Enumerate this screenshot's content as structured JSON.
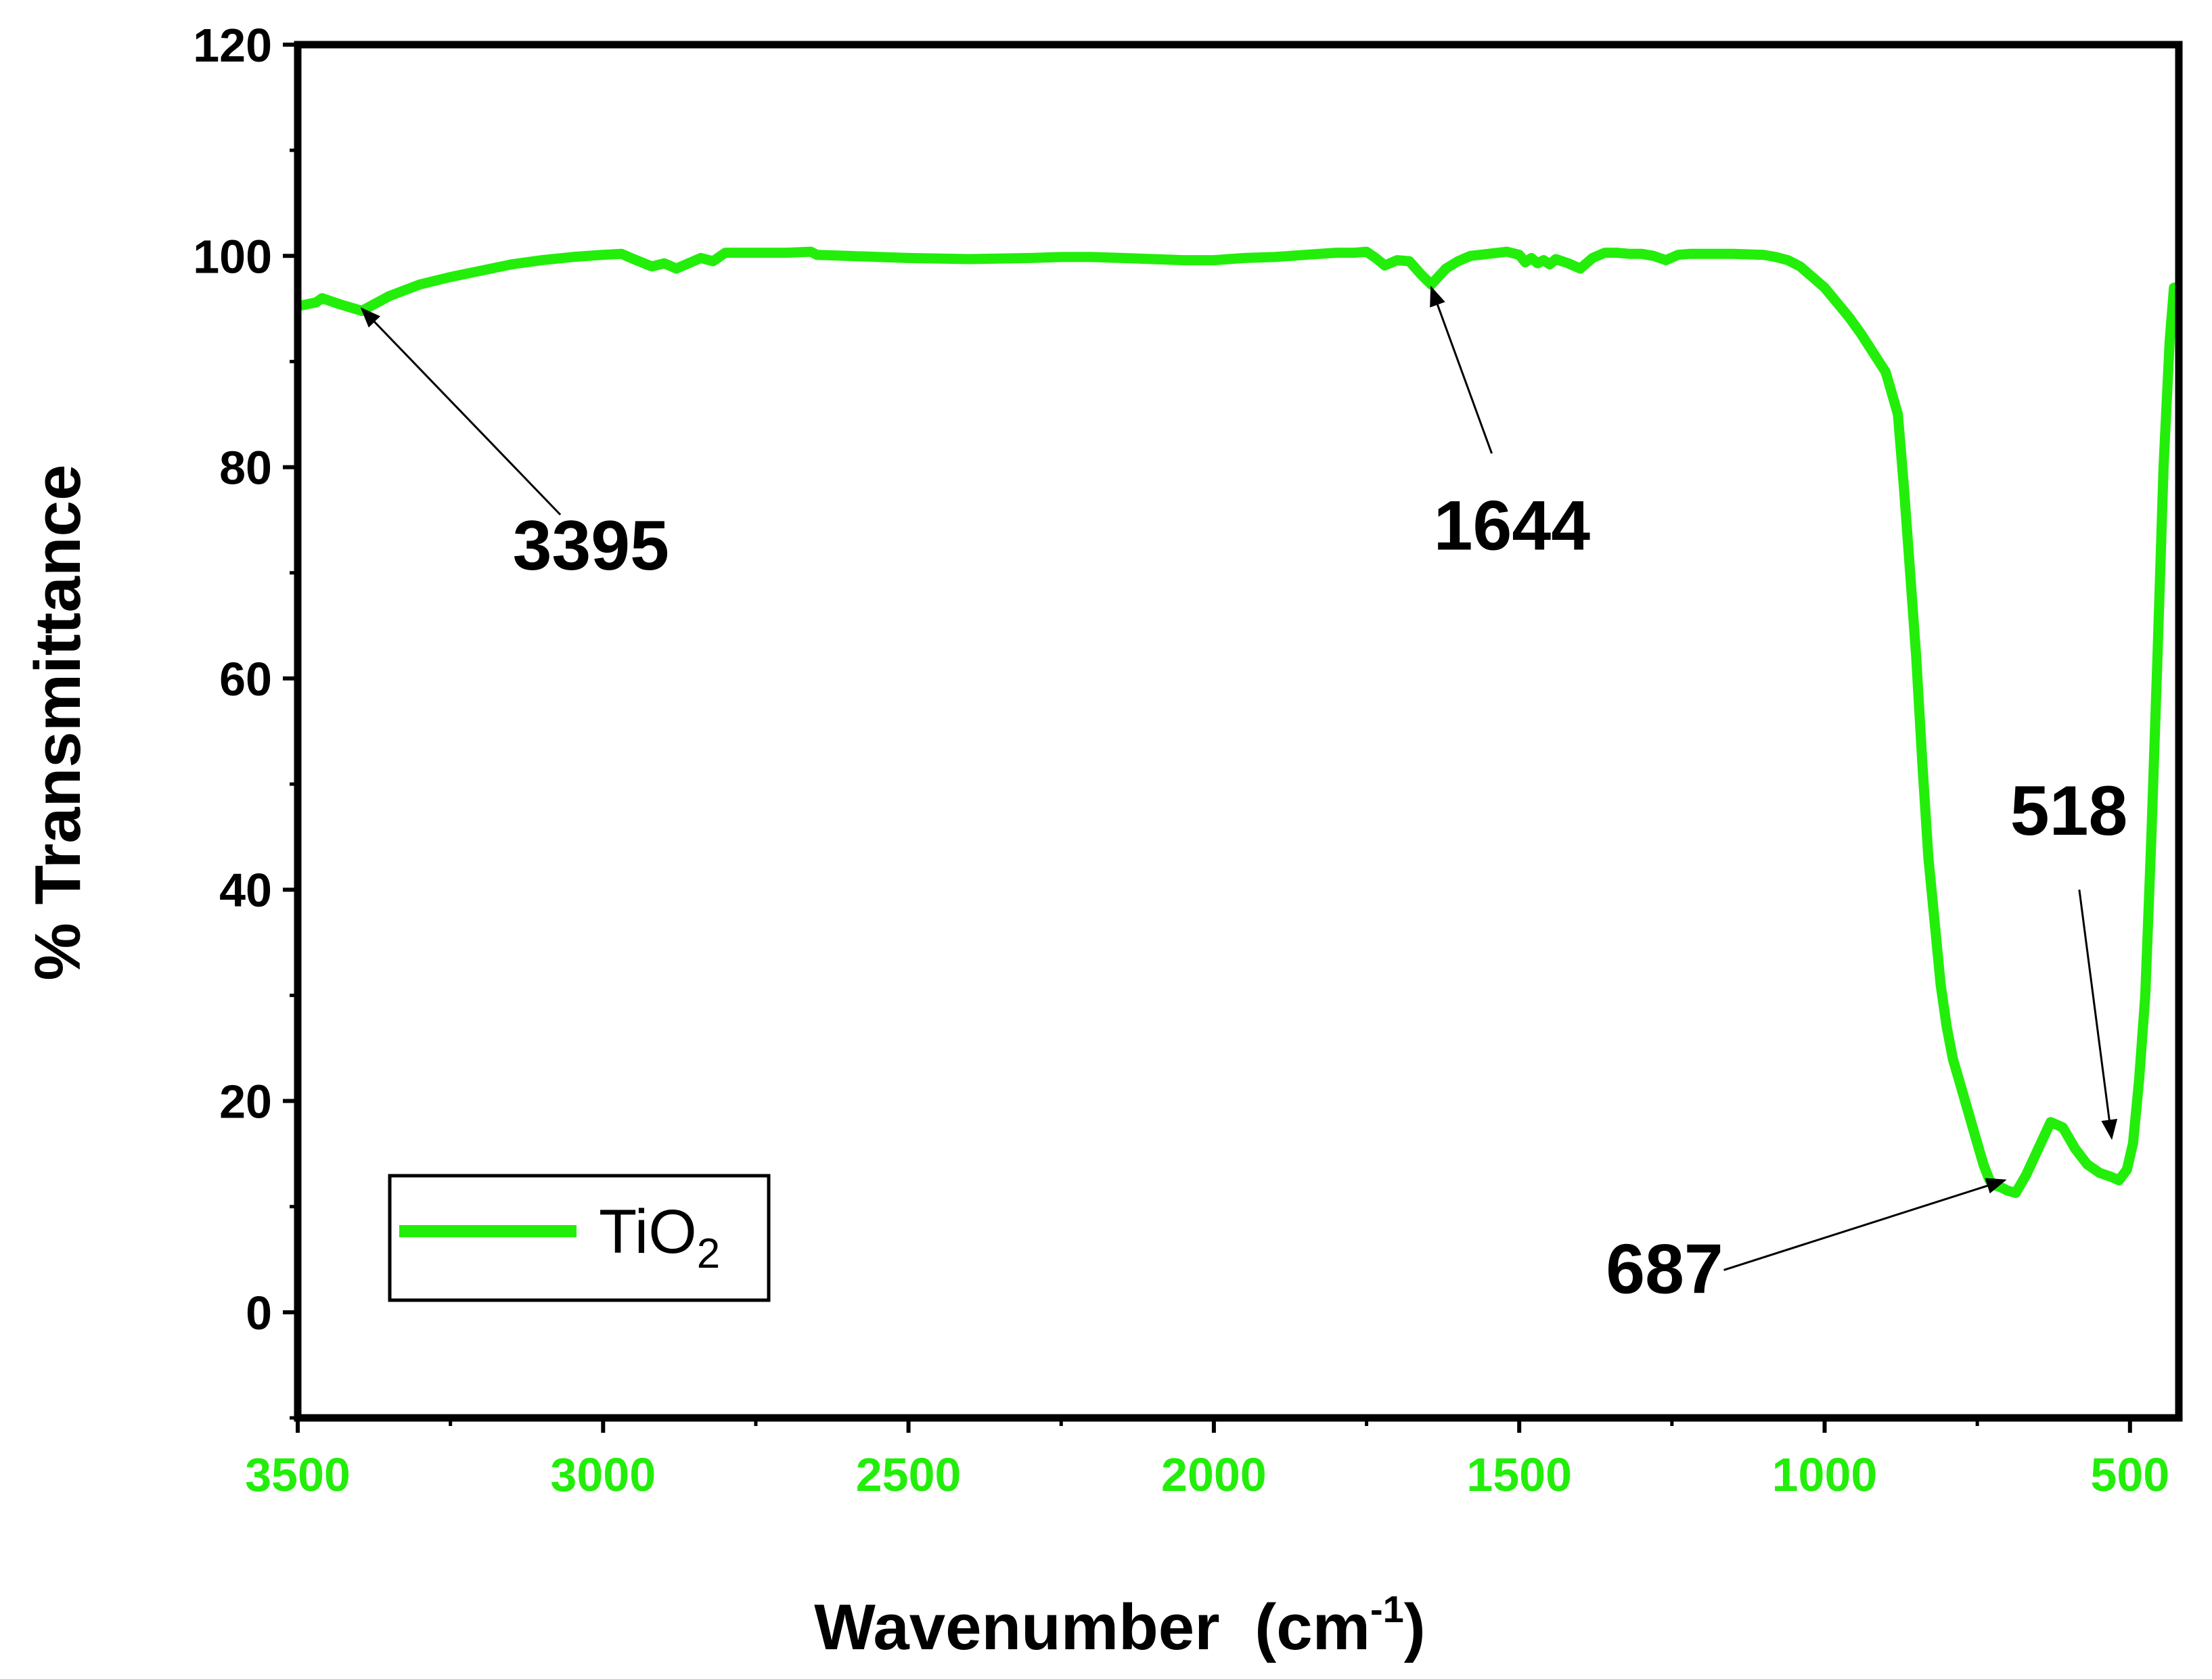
{
  "chart_data": {
    "type": "line",
    "title": "",
    "xlabel": "Wavenumber",
    "xlabel_unit_base": "(cm",
    "xlabel_unit_sup": "-1",
    "xlabel_unit_close": ")",
    "ylabel": "% Transmittance",
    "xlim": [
      3500,
      420
    ],
    "ylim": [
      -10,
      120
    ],
    "x_ticks": [
      3500,
      3000,
      2500,
      2000,
      1500,
      1000,
      500
    ],
    "y_ticks": [
      0,
      20,
      40,
      60,
      80,
      100,
      120
    ],
    "x_tick_labels": [
      "3500",
      "3000",
      "2500",
      "2000",
      "1500",
      "1000",
      "500"
    ],
    "y_tick_labels": [
      "0",
      "20",
      "40",
      "60",
      "80",
      "100",
      "120"
    ],
    "legend": {
      "placement": "bottom-left",
      "entries": [
        {
          "label_base": "TiO",
          "label_sub": "2"
        }
      ]
    },
    "colors": {
      "series": "#22ee0a",
      "axis": "#000000",
      "x_tick_labels": "#22ee0a"
    },
    "series": [
      {
        "name": "TiO2",
        "x": [
          3495,
          3470,
          3460,
          3430,
          3395,
          3350,
          3300,
          3250,
          3200,
          3150,
          3100,
          3050,
          3000,
          2970,
          2950,
          2920,
          2900,
          2880,
          2860,
          2840,
          2820,
          2800,
          2760,
          2700,
          2660,
          2650,
          2600,
          2500,
          2400,
          2300,
          2250,
          2200,
          2150,
          2100,
          2050,
          2000,
          1950,
          1900,
          1850,
          1800,
          1770,
          1750,
          1735,
          1720,
          1700,
          1680,
          1660,
          1644,
          1620,
          1600,
          1580,
          1550,
          1520,
          1500,
          1490,
          1480,
          1470,
          1460,
          1450,
          1440,
          1430,
          1420,
          1400,
          1380,
          1360,
          1340,
          1320,
          1300,
          1280,
          1260,
          1240,
          1220,
          1200,
          1150,
          1100,
          1080,
          1060,
          1040,
          1020,
          1000,
          980,
          960,
          940,
          920,
          900,
          880,
          870,
          860,
          850,
          840,
          830,
          820,
          810,
          800,
          790,
          780,
          770,
          760,
          750,
          740,
          730,
          720,
          710,
          700,
          687,
          670,
          650,
          630,
          610,
          590,
          570,
          550,
          530,
          518,
          505,
          495,
          485,
          475,
          465,
          455,
          445,
          435,
          428
        ],
        "y": [
          95.3,
          95.6,
          96.0,
          95.4,
          94.8,
          96.2,
          97.3,
          98.0,
          98.6,
          99.2,
          99.6,
          99.9,
          100.1,
          100.2,
          99.7,
          99.0,
          99.3,
          98.8,
          99.3,
          99.8,
          99.5,
          100.3,
          100.3,
          100.3,
          100.4,
          100.1,
          100.0,
          99.8,
          99.7,
          99.8,
          99.9,
          99.9,
          99.8,
          99.7,
          99.6,
          99.6,
          99.8,
          99.9,
          100.1,
          100.3,
          100.3,
          100.4,
          99.8,
          99.1,
          99.6,
          99.5,
          98.2,
          97.3,
          98.8,
          99.5,
          100.0,
          100.2,
          100.4,
          100.1,
          99.4,
          99.8,
          99.3,
          99.6,
          99.2,
          99.7,
          99.5,
          99.3,
          98.8,
          99.8,
          100.3,
          100.3,
          100.2,
          100.2,
          100.0,
          99.6,
          100.1,
          100.2,
          100.2,
          100.2,
          100.1,
          99.9,
          99.6,
          99.0,
          98.0,
          97.0,
          95.6,
          94.2,
          92.6,
          90.8,
          89.0,
          85.0,
          78.0,
          70.0,
          62.0,
          52.0,
          43.0,
          37.0,
          31.0,
          27.0,
          24.0,
          22.0,
          20.0,
          18.0,
          16.0,
          14.0,
          12.5,
          12.0,
          11.8,
          11.5,
          11.3,
          13.0,
          15.5,
          18.0,
          17.5,
          15.5,
          14.0,
          13.2,
          12.8,
          12.5,
          13.5,
          16.0,
          22.0,
          30.0,
          45.0,
          62.0,
          80.0,
          92.0,
          97.0
        ]
      }
    ],
    "annotations": [
      {
        "label": "3395",
        "point": [
          3395,
          95.0
        ],
        "text_at": [
          3020,
          70.3
        ],
        "arrow_from": [
          3070,
          75.5
        ]
      },
      {
        "label": "1644",
        "point": [
          1644,
          97.0
        ],
        "text_at": [
          1512,
          72.2
        ],
        "arrow_from": [
          1545,
          81.3
        ]
      },
      {
        "label": "518",
        "point": [
          530,
          16.5
        ],
        "text_at": [
          600,
          45.2
        ],
        "arrow_from": [
          583,
          40.0
        ]
      },
      {
        "label": "687",
        "point": [
          705,
          12.5
        ],
        "text_at": [
          1262,
          1.8
        ],
        "arrow_from": [
          1165,
          4.0
        ]
      }
    ]
  }
}
